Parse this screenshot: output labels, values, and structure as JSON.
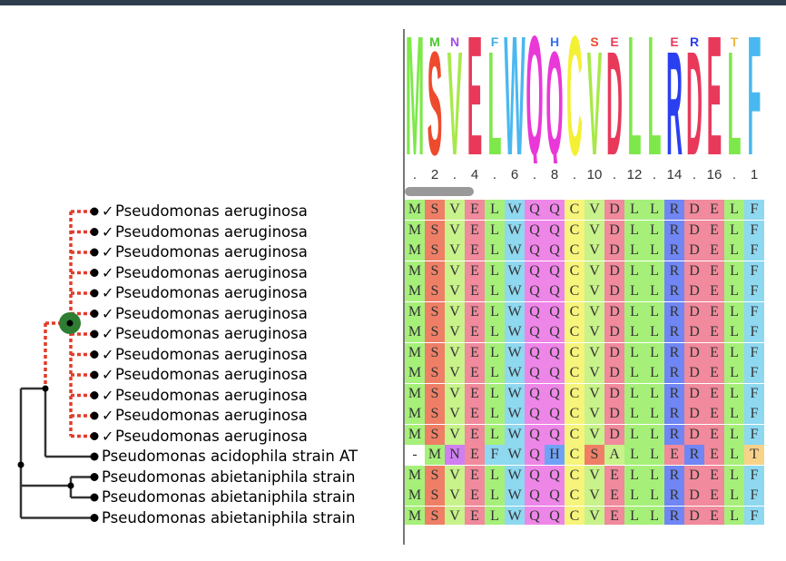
{
  "tree": {
    "leaves": [
      {
        "name": "Pseudomonas aeruginosa",
        "checked": true
      },
      {
        "name": "Pseudomonas aeruginosa",
        "checked": true
      },
      {
        "name": "Pseudomonas aeruginosa",
        "checked": true
      },
      {
        "name": "Pseudomonas aeruginosa",
        "checked": true
      },
      {
        "name": "Pseudomonas aeruginosa",
        "checked": true
      },
      {
        "name": "Pseudomonas aeruginosa",
        "checked": true
      },
      {
        "name": "Pseudomonas aeruginosa",
        "checked": true
      },
      {
        "name": "Pseudomonas aeruginosa",
        "checked": true
      },
      {
        "name": "Pseudomonas aeruginosa",
        "checked": true
      },
      {
        "name": "Pseudomonas aeruginosa",
        "checked": true
      },
      {
        "name": "Pseudomonas aeruginosa",
        "checked": true
      },
      {
        "name": "Pseudomonas aeruginosa",
        "checked": true
      },
      {
        "name": "Pseudomonas acidophila strain AT",
        "checked": false
      },
      {
        "name": "Pseudomonas abietaniphila strain",
        "checked": false
      },
      {
        "name": "Pseudomonas abietaniphila strain",
        "checked": false
      },
      {
        "name": "Pseudomonas abietaniphila strain",
        "checked": false
      }
    ],
    "check_glyph": "✓",
    "colors": {
      "collapsed_branch": "#e23b2a",
      "branch": "#333333",
      "selected_node": "#2e7d32"
    }
  },
  "alignment": {
    "ruler_labels": [
      ".",
      "2",
      ".",
      "4",
      ".",
      "6",
      ".",
      "8",
      ".",
      "10",
      ".",
      "12",
      ".",
      "14",
      ".",
      "16",
      ".",
      "1"
    ],
    "sequences": [
      "MSVELWQQCVDLLRDELF",
      "MSVELWQQCVDLLRDELF",
      "MSVELWQQCVDLLRDELF",
      "MSVELWQQCVDLLRDELF",
      "MSVELWQQCVDLLRDELF",
      "MSVELWQQCVDLLRDELF",
      "MSVELWQQCVDLLRDELF",
      "MSVELWQQCVDLLRDELF",
      "MSVELWQQCVDLLRDELF",
      "MSVELWQQCVDLLRDELF",
      "MSVELWQQCVDLLRDELF",
      "MSVELWQQCVDLLRDELF",
      "-MNEFWQHCSALLERELT",
      "MSVELWQQCVELLRDELF",
      "MSVELWQQCVELLRDELF",
      "MSVELWQQCVELLRDELF"
    ],
    "residue_colors": {
      "M": "#a6f07a",
      "S": "#ee7f66",
      "V": "#c8f28a",
      "E": "#f08a9c",
      "L": "#a6f07a",
      "W": "#8ed8f0",
      "Q": "#ee86e8",
      "C": "#f6f47a",
      "D": "#f08a9c",
      "R": "#6f86f4",
      "N": "#cf7ff0",
      "F": "#8ed8f0",
      "H": "#6fa2f4",
      "A": "#c8f28a",
      "T": "#f9d28a",
      "-": "#ffffff"
    },
    "logo": {
      "columns": [
        {
          "main": "M",
          "color": "#7ee84a"
        },
        {
          "main": "S",
          "color": "#ee4a2e",
          "minor": "M",
          "minor_color": "#4cc72a"
        },
        {
          "main": "V",
          "color": "#a8e84a",
          "minor": "N",
          "minor_color": "#a24ae8"
        },
        {
          "main": "E",
          "color": "#e8395a"
        },
        {
          "main": "L",
          "color": "#7ee84a",
          "minor": "F",
          "minor_color": "#39b0e8"
        },
        {
          "main": "W",
          "color": "#4ab8f0"
        },
        {
          "main": "Q",
          "color": "#ea38d8"
        },
        {
          "main": "Q",
          "color": "#ea38d8",
          "minor": "H",
          "minor_color": "#3a6ff0"
        },
        {
          "main": "C",
          "color": "#f4f034"
        },
        {
          "main": "V",
          "color": "#a8e84a",
          "minor": "S",
          "minor_color": "#ee4a2e"
        },
        {
          "main": "D",
          "color": "#e8395a",
          "minor": "E",
          "minor_color": "#e8395a"
        },
        {
          "main": "L",
          "color": "#7ee84a"
        },
        {
          "main": "L",
          "color": "#7ee84a"
        },
        {
          "main": "R",
          "color": "#2a3ff0",
          "minor": "E",
          "minor_color": "#e8395a"
        },
        {
          "main": "D",
          "color": "#e8395a",
          "minor": "R",
          "minor_color": "#2a3ff0"
        },
        {
          "main": "E",
          "color": "#e8395a"
        },
        {
          "main": "L",
          "color": "#7ee84a",
          "minor": "T",
          "minor_color": "#f0b840"
        },
        {
          "main": "F",
          "color": "#4ab8f0"
        }
      ]
    }
  }
}
